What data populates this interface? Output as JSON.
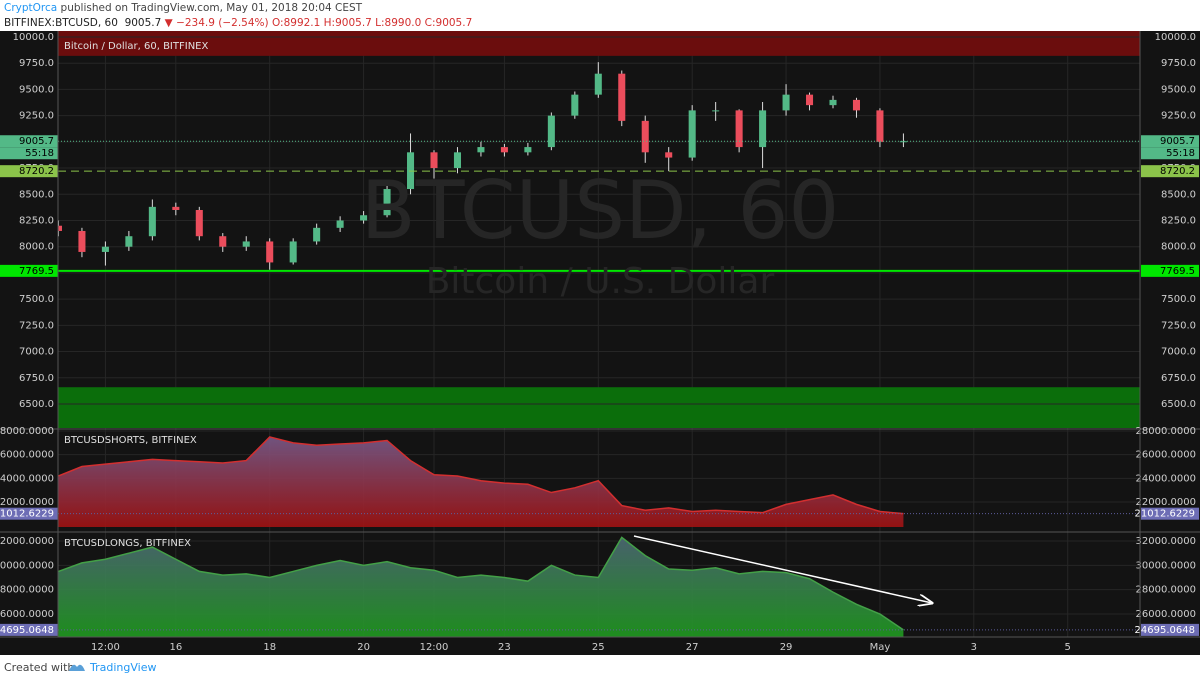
{
  "header": {
    "author": "CryptOrca",
    "published": "published on TradingView.com, May 01, 2018 20:04 CEST",
    "symbol": "BITFINEX:BTCUSD, 60",
    "last": "9005.7",
    "change": "▼ −234.9 (−2.54%)",
    "ohlc": "O:8992.1 H:9005.7 L:8990.0 C:9005.7"
  },
  "footer": {
    "created": "Created with",
    "brand": "TradingView"
  },
  "chart_data": [
    {
      "type": "candlestick",
      "legend": "Bitcoin / Dollar, 60, BITFINEX",
      "watermark": "BTCUSD, 60",
      "watermark_subtitle": "Bitcoin / U.S. Dollar",
      "up_color": "#53b987",
      "down_color": "#eb4d5c",
      "x": [
        13.5,
        14,
        14.5,
        15,
        15.5,
        16,
        16.5,
        17,
        17.5,
        18,
        18.5,
        19,
        19.5,
        20,
        20.5,
        21,
        21.5,
        22,
        22.5,
        23,
        23.5,
        24,
        24.5,
        25,
        25.5,
        26,
        26.5,
        27,
        27.5,
        28,
        28.5,
        29,
        29.5,
        30,
        30.5,
        31,
        31.5
      ],
      "open": [
        8200,
        8150,
        7950,
        8000,
        8100,
        8380,
        8350,
        8100,
        8000,
        8050,
        7850,
        8050,
        8180,
        8250,
        8300,
        8550,
        8900,
        8750,
        8900,
        8950,
        8900,
        8950,
        9250,
        9450,
        9650,
        9200,
        8900,
        8850,
        9300,
        9300,
        8950,
        9300,
        9450,
        9350,
        9400,
        9300,
        9000
      ],
      "high": [
        8250,
        8180,
        8050,
        8150,
        8450,
        8420,
        8380,
        8130,
        8100,
        8080,
        8080,
        8220,
        8290,
        8340,
        8580,
        9080,
        8920,
        8950,
        9000,
        8980,
        8990,
        9280,
        9480,
        9760,
        9680,
        9250,
        8950,
        9350,
        9380,
        9310,
        9380,
        9550,
        9470,
        9440,
        9420,
        9320,
        9080
      ],
      "low": [
        8100,
        7900,
        7820,
        7960,
        8060,
        8300,
        8060,
        7950,
        7960,
        7780,
        7830,
        8020,
        8140,
        8220,
        8280,
        8500,
        8650,
        8700,
        8860,
        8860,
        8870,
        8920,
        9220,
        9420,
        9150,
        8800,
        8720,
        8820,
        9200,
        8900,
        8750,
        9250,
        9300,
        9320,
        9230,
        8950,
        8950
      ],
      "close": [
        8150,
        7950,
        8000,
        8100,
        8380,
        8350,
        8100,
        8000,
        8050,
        7850,
        8050,
        8180,
        8250,
        8300,
        8550,
        8900,
        8750,
        8900,
        8950,
        8900,
        8950,
        9250,
        9450,
        9650,
        9200,
        8900,
        8850,
        9300,
        9300,
        8950,
        9300,
        9450,
        9350,
        9400,
        9300,
        9000,
        9005.7
      ],
      "countdown": "55:18",
      "levels": [
        {
          "value": 9005.7,
          "style": "dotted",
          "color": "#53b987"
        },
        {
          "value": 8720.2,
          "style": "dashed",
          "color": "#8bc34a"
        },
        {
          "value": 7769.5,
          "style": "solid",
          "color": "#00e600"
        }
      ],
      "zones": [
        {
          "from": 9820,
          "to": 10057,
          "color": "#6b0d0d"
        },
        {
          "from": 6271,
          "to": 6660,
          "color": "#0b6e0b"
        }
      ],
      "xlim": [
        13.49,
        36.54
      ],
      "xticks": [
        {
          "value": 14.5,
          "label": "12:00"
        },
        16,
        18,
        20,
        {
          "value": 21.5,
          "label": "12:00"
        },
        23,
        25,
        27,
        29,
        {
          "value": 31,
          "label": "May"
        },
        {
          "value": 33,
          "label": "3"
        },
        {
          "value": 35,
          "label": "5"
        }
      ],
      "ylim": [
        6271,
        10057
      ],
      "yticks": [
        {
          "value": 6500,
          "label": "6500.0"
        },
        {
          "value": 6750,
          "label": "6750.0"
        },
        {
          "value": 7000,
          "label": "7000.0"
        },
        {
          "value": 7250,
          "label": "7250.0"
        },
        {
          "value": 7500,
          "label": "7500.0"
        },
        {
          "value": 7750,
          "label": "7750.0"
        },
        {
          "value": 8000,
          "label": "8000.0"
        },
        {
          "value": 8250,
          "label": "8250.0"
        },
        {
          "value": 8500,
          "label": "8500.0"
        },
        {
          "value": 8750,
          "label": "8750.0"
        },
        {
          "value": 9000,
          "label": "9000.0"
        },
        {
          "value": 9250,
          "label": "9250.0"
        },
        {
          "value": 9500,
          "label": "9500.0"
        },
        {
          "value": 9750,
          "label": "9750.0"
        },
        {
          "value": 10000,
          "label": "10000.0"
        }
      ],
      "grid": true
    },
    {
      "type": "area",
      "legend": "BTCUSDSHORTS, BITFINEX",
      "color": "#d32f2f",
      "x": [
        13.5,
        14,
        14.5,
        15,
        15.5,
        16,
        16.5,
        17,
        17.5,
        18,
        18.5,
        19,
        19.5,
        20,
        20.5,
        21,
        21.5,
        22,
        22.5,
        23,
        23.5,
        24,
        24.5,
        25,
        25.5,
        26,
        26.5,
        27,
        27.5,
        28,
        28.5,
        29,
        29.5,
        30,
        30.5,
        31,
        31.5
      ],
      "values": [
        24200,
        25000,
        25200,
        25400,
        25600,
        25500,
        25400,
        25300,
        25500,
        27500,
        27000,
        26800,
        26900,
        27000,
        27200,
        25500,
        24300,
        24200,
        23800,
        23600,
        23500,
        22800,
        23200,
        23800,
        21700,
        21300,
        21500,
        21200,
        21300,
        21200,
        21100,
        21800,
        22200,
        22600,
        21800,
        21200,
        21012.6229
      ],
      "ylim": [
        19887,
        28085
      ],
      "yticks": [
        {
          "value": 22000,
          "label": "22000.0000"
        },
        {
          "value": 24000,
          "label": "24000.0000"
        },
        {
          "value": 26000,
          "label": "26000.0000"
        },
        {
          "value": 28000,
          "label": "28000.0000"
        }
      ]
    },
    {
      "type": "area",
      "legend": "BTCUSDLONGS, BITFINEX",
      "color": "#43a047",
      "x": [
        13.5,
        14,
        14.5,
        15,
        15.5,
        16,
        16.5,
        17,
        17.5,
        18,
        18.5,
        19,
        19.5,
        20,
        20.5,
        21,
        21.5,
        22,
        22.5,
        23,
        23.5,
        24,
        24.5,
        25,
        25.5,
        26,
        26.5,
        27,
        27.5,
        28,
        28.5,
        29,
        29.5,
        30,
        30.5,
        31,
        31.5
      ],
      "values": [
        29500,
        30200,
        30500,
        31000,
        31500,
        30500,
        29500,
        29200,
        29300,
        29000,
        29500,
        30000,
        30400,
        30000,
        30300,
        29800,
        29600,
        29000,
        29200,
        29000,
        28700,
        30000,
        29200,
        29000,
        32300,
        30800,
        29700,
        29600,
        29800,
        29300,
        29500,
        29400,
        28900,
        27800,
        26800,
        26000,
        24695.0648
      ],
      "ylim": [
        24110,
        32658
      ],
      "yticks": [
        {
          "value": 26000,
          "label": "26000.0000"
        },
        {
          "value": 28000,
          "label": "28000.0000"
        },
        {
          "value": 30000,
          "label": "30000.0000"
        },
        {
          "value": 32000,
          "label": "32000.0000"
        }
      ]
    }
  ]
}
